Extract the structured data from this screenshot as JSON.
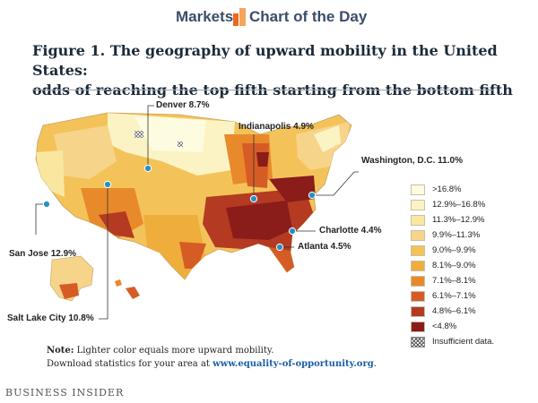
{
  "header": {
    "left_label": "Markets",
    "right_label": "Chart of the Day",
    "colors": {
      "text": "#3b4c6b",
      "logo_left": "#e86a1e",
      "logo_right": "#f5a45a"
    }
  },
  "figure": {
    "title_line1": "Figure 1. The geography of upward mobility in the United States:",
    "title_line2": "odds of reaching the top fifth starting from the bottom fifth"
  },
  "cities": [
    {
      "id": "denver",
      "label": "Denver 8.7%"
    },
    {
      "id": "indianapolis",
      "label": "Indianapolis 4.9%"
    },
    {
      "id": "washington",
      "label": "Washington, D.C. 11.0%"
    },
    {
      "id": "san-jose",
      "label": "San Jose 12.9%"
    },
    {
      "id": "charlotte",
      "label": "Charlotte 4.4%"
    },
    {
      "id": "atlanta",
      "label": "Atlanta 4.5%"
    },
    {
      "id": "salt-lake-city",
      "label": "Salt Lake City 10.8%"
    }
  ],
  "legend": [
    {
      "label": ">16.8%",
      "color": "#fdfbe0"
    },
    {
      "label": "12.9%–16.8%",
      "color": "#fbf3c4"
    },
    {
      "label": "11.3%–12.9%",
      "color": "#f9e7a0"
    },
    {
      "label": "9.9%–11.3%",
      "color": "#f6d58a"
    },
    {
      "label": "9.0%–9.9%",
      "color": "#f3c35a"
    },
    {
      "label": "8.1%–9.0%",
      "color": "#efad3c"
    },
    {
      "label": "7.1%–8.1%",
      "color": "#e88a2c"
    },
    {
      "label": "6.1%–7.1%",
      "color": "#d65c26"
    },
    {
      "label": "4.8%–6.1%",
      "color": "#b43a22"
    },
    {
      "label": "<4.8%",
      "color": "#8a1c1a"
    },
    {
      "label": "Insufficient data.",
      "color": "hatch"
    }
  ],
  "note": {
    "prefix": "Note:",
    "line1": " Lighter color equals more upward mobility.",
    "line2": "Download statistics for your area at ",
    "url": "www.equality-of-opportunity.org",
    "suffix": "."
  },
  "source": "BUSINESS INSIDER",
  "colors": {
    "marker": "#2a8fc4",
    "rule": "#9aa0a8"
  }
}
